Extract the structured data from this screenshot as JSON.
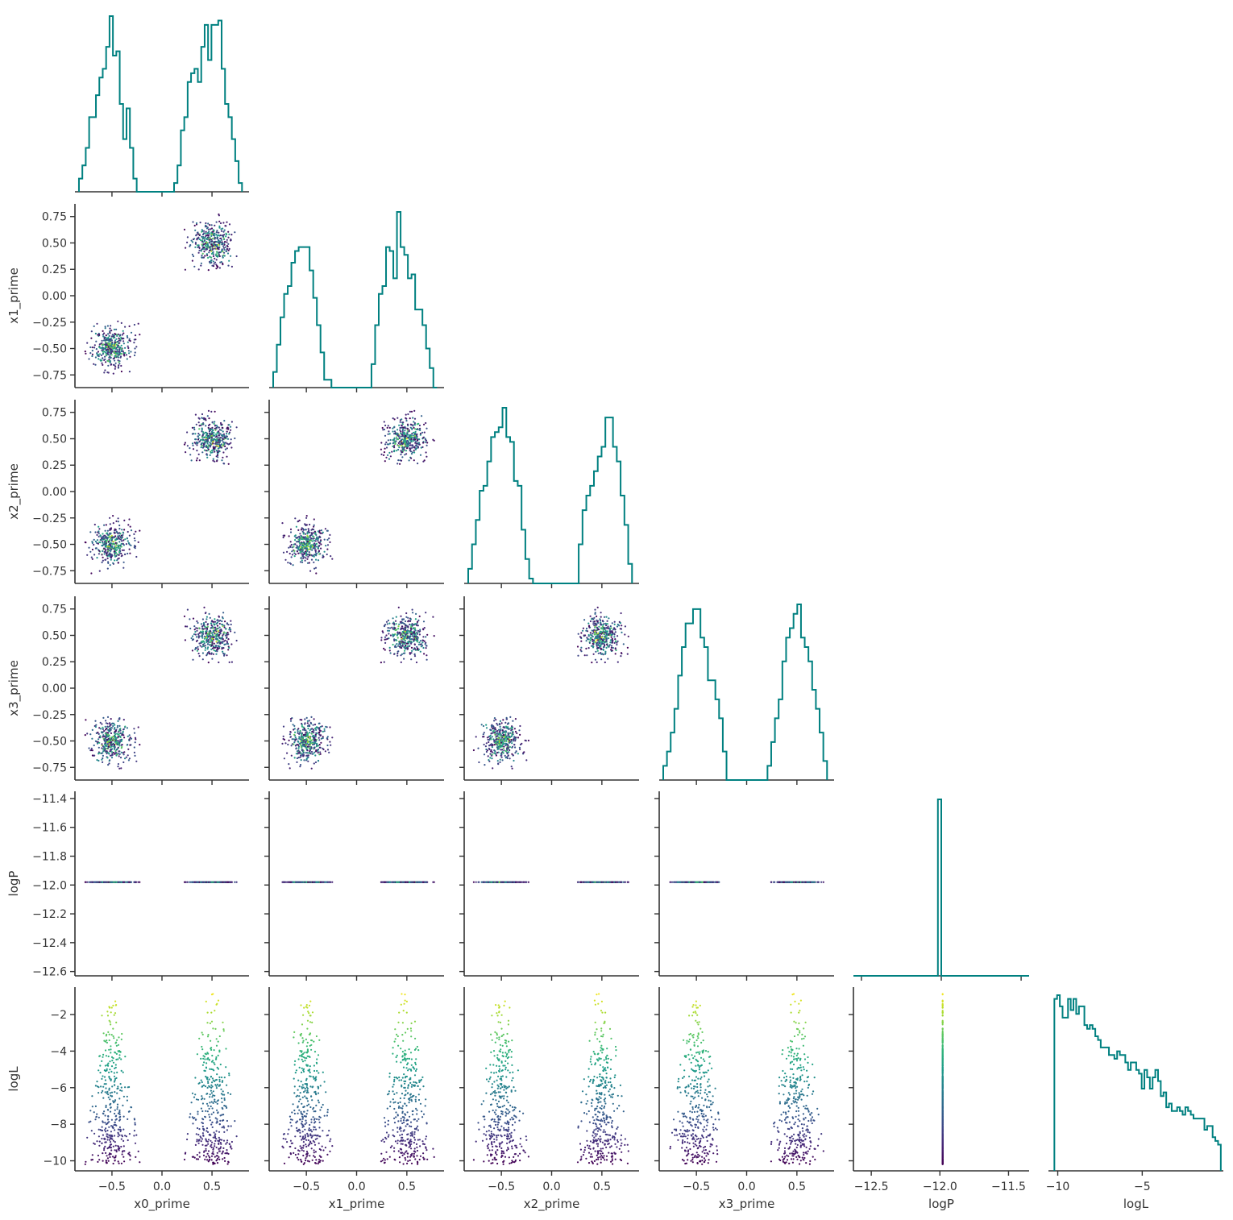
{
  "chart_data": {
    "type": "scatter",
    "title": "",
    "kind": "corner-plot",
    "variables": [
      "x0_prime",
      "x1_prime",
      "x2_prime",
      "x3_prime",
      "logP",
      "logL"
    ],
    "axis_labels": {
      "x": [
        "x0_prime",
        "x1_prime",
        "x2_prime",
        "x3_prime",
        "logP",
        "logL"
      ],
      "y": [
        "",
        "x1_prime",
        "x2_prime",
        "x3_prime",
        "logP",
        "logL"
      ]
    },
    "ranges": {
      "x0_prime": [
        -0.87,
        0.87
      ],
      "x1_prime": [
        -0.87,
        0.87
      ],
      "x2_prime": [
        -0.87,
        0.87
      ],
      "x3_prime": [
        -0.87,
        0.87
      ],
      "logP": [
        -12.63,
        -11.35
      ],
      "logL": [
        -10.55,
        -0.5
      ]
    },
    "hist_ranges": {
      "logP": [
        -12.55,
        -11.45
      ],
      "logL": [
        -10.55,
        -0.2
      ]
    },
    "ticks": {
      "prime": {
        "values": [
          -0.5,
          0.0,
          0.5
        ],
        "labels": [
          "−0.5",
          "0.0",
          "0.5"
        ]
      },
      "prime_y": {
        "values": [
          0.75,
          0.5,
          0.25,
          0.0,
          -0.25,
          -0.5,
          -0.75
        ],
        "labels": [
          "0.75",
          "0.50",
          "0.25",
          "0.00",
          "−0.25",
          "−0.50",
          "−0.75"
        ]
      },
      "logP_x": {
        "values": [
          -12.5,
          -12.0,
          -11.5
        ],
        "labels": [
          "−12.5",
          "−12.0",
          "−11.5"
        ]
      },
      "logP_y": {
        "values": [
          -11.4,
          -11.6,
          -11.8,
          -12.0,
          -12.2,
          -12.4,
          -12.6
        ],
        "labels": [
          "−11.4",
          "−11.6",
          "−11.8",
          "−12.0",
          "−12.2",
          "−12.4",
          "−12.6"
        ]
      },
      "logL_x": {
        "values": [
          -10,
          -5
        ],
        "labels": [
          "−10",
          "−5"
        ]
      },
      "logL_y": {
        "values": [
          -2,
          -4,
          -6,
          -8,
          -10
        ],
        "labels": [
          "−2",
          "−4",
          "−6",
          "−8",
          "−10"
        ]
      }
    },
    "clusters": {
      "centers": [
        -0.5,
        0.5
      ],
      "radius": 0.28,
      "points_per_cluster": 380
    },
    "logP_value": -11.98,
    "logL_range": [
      -10.2,
      -0.7
    ],
    "colormap": "viridis",
    "hist_color": "#008080",
    "histograms": {
      "x0_prime": {
        "bin_edges": [
          -0.83,
          0.8
        ],
        "counts": [
          3,
          6,
          10,
          17,
          17,
          22,
          26,
          28,
          33,
          40,
          31,
          32,
          20,
          12,
          19,
          10,
          3,
          0,
          0,
          0,
          0,
          0,
          0,
          0,
          0,
          0,
          0,
          0,
          2,
          6,
          14,
          17,
          25,
          27,
          28,
          25,
          33,
          38,
          30,
          38,
          38,
          39,
          28,
          20,
          17,
          12,
          7,
          2
        ]
      },
      "x1_prime": {
        "bin_edges": [
          -0.83,
          0.8
        ],
        "counts": [
          4,
          11,
          18,
          24,
          26,
          32,
          35,
          36,
          36,
          36,
          30,
          23,
          16,
          9,
          2,
          2,
          0,
          0,
          0,
          0,
          0,
          0,
          0,
          0,
          0,
          0,
          0,
          6,
          16,
          24,
          26,
          36,
          35,
          28,
          45,
          36,
          34,
          28,
          29,
          20,
          20,
          16,
          10,
          5,
          0
        ]
      },
      "x2_prime": {
        "bin_edges": [
          -0.83,
          0.8
        ],
        "counts": [
          3,
          8,
          13,
          19,
          20,
          25,
          30,
          31,
          32,
          36,
          30,
          29,
          21,
          20,
          11,
          5,
          1,
          0,
          0,
          0,
          0,
          0,
          0,
          0,
          0,
          0,
          0,
          0,
          0,
          8,
          15,
          18,
          20,
          23,
          26,
          28,
          34,
          34,
          28,
          25,
          18,
          12,
          4
        ]
      },
      "x3_prime": {
        "bin_edges": [
          -0.83,
          0.8
        ],
        "counts": [
          3,
          6,
          10,
          15,
          22,
          28,
          33,
          33,
          36,
          36,
          30,
          28,
          21,
          21,
          17,
          13,
          6,
          0,
          0,
          0,
          0,
          0,
          0,
          0,
          0,
          0,
          0,
          0,
          3,
          8,
          13,
          17,
          25,
          30,
          32,
          35,
          37,
          30,
          28,
          25,
          19,
          15,
          10,
          4
        ]
      },
      "logP": {
        "bin_edges": [
          -12.55,
          -11.45
        ],
        "counts": [
          0,
          0,
          0,
          0,
          0,
          0,
          0,
          0,
          0,
          0,
          0,
          0,
          0,
          0,
          0,
          0,
          0,
          0,
          0,
          0,
          0,
          0,
          0,
          0,
          0,
          1,
          0,
          0,
          0,
          0,
          0,
          0,
          0,
          0,
          0,
          0,
          0,
          0,
          0,
          0,
          0,
          0,
          0,
          0,
          0,
          0,
          0,
          0,
          0,
          0,
          0,
          0
        ]
      },
      "logL": {
        "bin_edges": [
          -10.2,
          -0.35
        ],
        "counts": [
          46,
          47,
          44,
          41,
          41,
          46,
          43,
          46,
          42,
          44,
          44,
          39,
          38,
          39,
          38,
          36,
          35,
          33,
          33,
          33,
          31,
          31,
          30,
          32,
          31,
          31,
          29,
          27,
          29,
          29,
          27,
          26,
          22,
          27,
          25,
          22,
          25,
          27,
          24,
          20,
          21,
          17,
          18,
          16,
          16,
          17,
          16,
          15,
          17,
          16,
          15,
          14,
          14,
          14,
          14,
          11,
          12,
          12,
          9,
          8,
          7
        ]
      }
    }
  }
}
